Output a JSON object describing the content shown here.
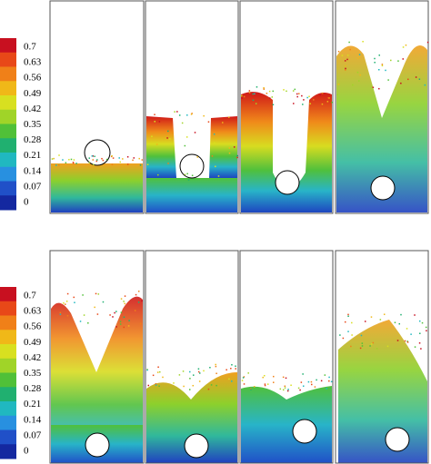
{
  "colorbars": [
    {
      "labels": [
        "0.7",
        "0.63",
        "0.56",
        "0.49",
        "0.42",
        "0.35",
        "0.28",
        "0.21",
        "0.14",
        "0.07",
        "0"
      ]
    },
    {
      "labels": [
        "0.7",
        "0.63",
        "0.56",
        "0.49",
        "0.42",
        "0.35",
        "0.28",
        "0.21",
        "0.14",
        "0.07",
        "0"
      ]
    }
  ]
}
